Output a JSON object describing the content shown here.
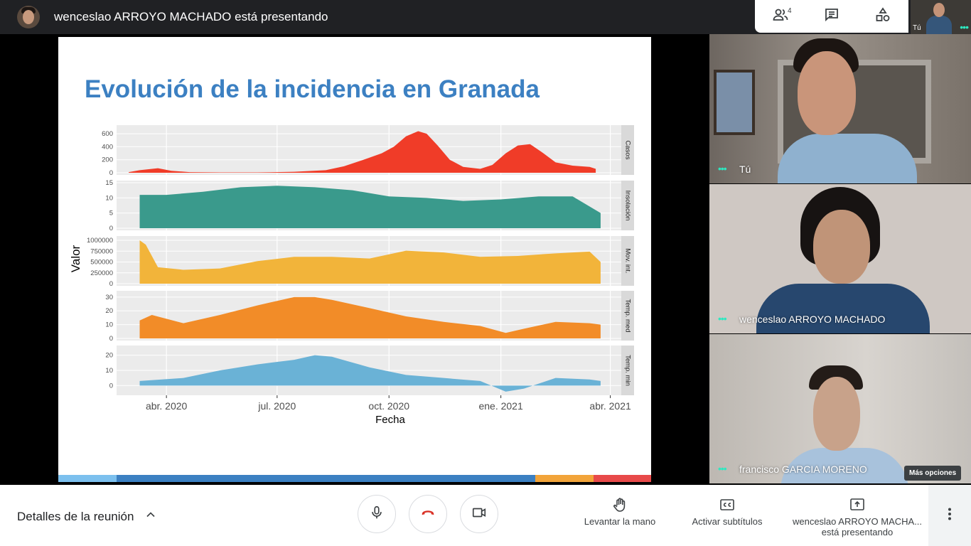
{
  "topbar": {
    "presenting_text": "wenceslao ARROYO MACHADO está presentando",
    "participants_count": "4",
    "self_label": "Tú"
  },
  "slide": {
    "title": "Evolución de la incidencia en Granada"
  },
  "chart_data": {
    "type": "area",
    "xlabel": "Fecha",
    "ylabel": "Valor",
    "x_ticks": [
      "abr. 2020",
      "jul. 2020",
      "oct. 2020",
      "ene. 2021",
      "abr. 2021"
    ],
    "x_tick_dates": [
      "2020-04-01",
      "2020-07-01",
      "2020-10-01",
      "2021-01-01",
      "2021-04-01"
    ],
    "facets": [
      {
        "name": "Casos",
        "color": "#f03c28",
        "ylim": [
          0,
          700
        ],
        "yticks": [
          "600",
          "400",
          "200",
          "0"
        ],
        "ytick_values": [
          600,
          400,
          200,
          0
        ],
        "x": [
          "2020-03-01",
          "2020-03-10",
          "2020-03-25",
          "2020-04-05",
          "2020-04-20",
          "2020-05-15",
          "2020-06-15",
          "2020-07-15",
          "2020-08-10",
          "2020-08-25",
          "2020-09-10",
          "2020-09-25",
          "2020-10-05",
          "2020-10-15",
          "2020-10-25",
          "2020-11-01",
          "2020-11-10",
          "2020-11-20",
          "2020-12-01",
          "2020-12-15",
          "2020-12-25",
          "2021-01-05",
          "2021-01-15",
          "2021-01-25",
          "2021-02-05",
          "2021-02-15",
          "2021-03-01",
          "2021-03-15",
          "2021-03-20"
        ],
        "y": [
          10,
          40,
          70,
          30,
          10,
          5,
          5,
          15,
          40,
          100,
          200,
          300,
          400,
          560,
          640,
          600,
          420,
          200,
          90,
          60,
          120,
          300,
          420,
          440,
          300,
          160,
          110,
          90,
          60
        ]
      },
      {
        "name": "Insolación",
        "color": "#3a9a8c",
        "ylim": [
          0,
          15
        ],
        "yticks": [
          "15",
          "10",
          "5",
          "0"
        ],
        "ytick_values": [
          15,
          10,
          5,
          0
        ],
        "x": [
          "2020-03-10",
          "2020-04-01",
          "2020-05-01",
          "2020-06-01",
          "2020-07-01",
          "2020-08-01",
          "2020-09-01",
          "2020-10-01",
          "2020-11-01",
          "2020-12-01",
          "2021-01-01",
          "2021-02-01",
          "2021-03-01",
          "2021-03-24"
        ],
        "y": [
          11,
          11,
          12,
          13.5,
          14,
          13.5,
          12.5,
          10.5,
          10,
          9,
          9.5,
          10.5,
          10.5,
          5
        ]
      },
      {
        "name": "Mov. int.",
        "color": "#f2b43a",
        "ylim": [
          0,
          1050000
        ],
        "yticks": [
          "1000000",
          "750000",
          "500000",
          "250000",
          "0"
        ],
        "ytick_values": [
          1000000,
          750000,
          500000,
          250000,
          0
        ],
        "x": [
          "2020-03-10",
          "2020-03-15",
          "2020-03-25",
          "2020-04-15",
          "2020-05-15",
          "2020-06-15",
          "2020-07-15",
          "2020-08-15",
          "2020-09-15",
          "2020-10-15",
          "2020-11-15",
          "2020-12-15",
          "2021-01-15",
          "2021-02-15",
          "2021-03-15",
          "2021-03-24"
        ],
        "y": [
          1000000,
          900000,
          380000,
          320000,
          350000,
          520000,
          620000,
          620000,
          580000,
          760000,
          720000,
          620000,
          640000,
          700000,
          740000,
          500000
        ]
      },
      {
        "name": "Temp. med",
        "color": "#f28c28",
        "ylim": [
          0,
          33
        ],
        "yticks": [
          "30",
          "20",
          "10",
          "0"
        ],
        "ytick_values": [
          30,
          20,
          10,
          0
        ],
        "x": [
          "2020-03-10",
          "2020-03-20",
          "2020-04-15",
          "2020-05-15",
          "2020-06-15",
          "2020-07-15",
          "2020-08-01",
          "2020-08-15",
          "2020-09-15",
          "2020-10-15",
          "2020-11-15",
          "2020-12-15",
          "2021-01-05",
          "2021-01-20",
          "2021-02-15",
          "2021-03-15",
          "2021-03-24"
        ],
        "y": [
          13,
          17,
          11,
          17,
          24,
          30,
          30,
          28,
          22,
          16,
          12,
          9,
          4,
          7,
          12,
          11,
          10
        ]
      },
      {
        "name": "Temp. min",
        "color": "#6ab2d6",
        "ylim": [
          -5,
          25
        ],
        "yticks": [
          "20",
          "10",
          "0"
        ],
        "ytick_values": [
          20,
          10,
          0
        ],
        "x": [
          "2020-03-10",
          "2020-04-15",
          "2020-05-15",
          "2020-06-15",
          "2020-07-15",
          "2020-08-01",
          "2020-08-15",
          "2020-09-15",
          "2020-10-15",
          "2020-11-15",
          "2020-12-15",
          "2021-01-05",
          "2021-01-20",
          "2021-02-15",
          "2021-03-15",
          "2021-03-24"
        ],
        "y": [
          3,
          5,
          10,
          14,
          17,
          20,
          19,
          12,
          7,
          5,
          3,
          -4,
          -2,
          5,
          4,
          3
        ]
      }
    ]
  },
  "tiles": [
    {
      "name": "Tú"
    },
    {
      "name": "wenceslao ARROYO MACHADO"
    },
    {
      "name": "francisco GARCIA MORENO"
    }
  ],
  "tooltip": {
    "more_options": "Más opciones"
  },
  "bottombar": {
    "details_label": "Detalles de la reunión",
    "raise_hand_label": "Levantar la mano",
    "captions_label": "Activar subtítulos",
    "presenting_line1": "wenceslao ARROYO MACHA...",
    "presenting_line2": "está presentando"
  },
  "colors": {
    "accent_teal": "#2ee8c0",
    "end_call_red": "#d93025",
    "title_blue": "#3c80c2"
  }
}
